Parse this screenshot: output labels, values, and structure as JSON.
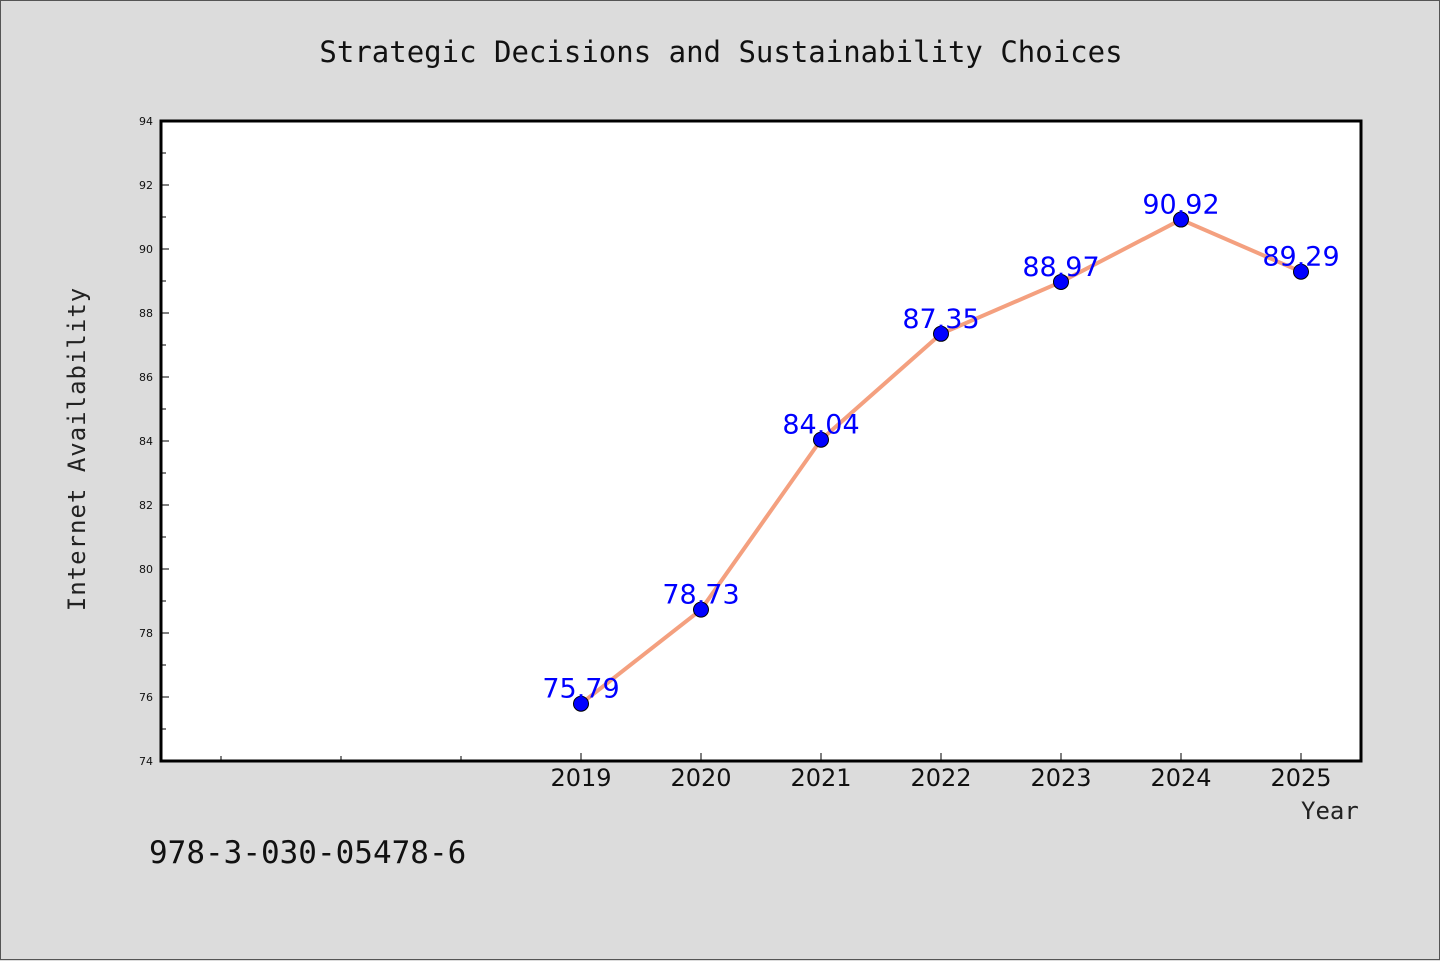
{
  "chart_data": {
    "type": "line",
    "title": "Strategic Decisions and Sustainability Choices",
    "xlabel": "Year",
    "ylabel": "Internet Availability",
    "x": [
      "2019",
      "2020",
      "2021",
      "2022",
      "2023",
      "2024",
      "2025"
    ],
    "values": [
      75.79,
      78.73,
      84.04,
      87.35,
      88.97,
      90.92,
      89.29
    ],
    "data_labels": [
      "75.79",
      "78.73",
      "84.04",
      "87.35",
      "88.97",
      "90.92",
      "89.29"
    ],
    "ylim": [
      74,
      94
    ],
    "yticks": [
      "74",
      "76",
      "78",
      "80",
      "82",
      "84",
      "86",
      "88",
      "90",
      "92",
      "94"
    ],
    "grid": false,
    "line_color": "#f4a07f",
    "marker_color": "#0000ff",
    "label_color": "#0000ff",
    "plot_background": "#ffffff",
    "figure_background": "#dcdcdc"
  },
  "footnote": "978-3-030-05478-6"
}
